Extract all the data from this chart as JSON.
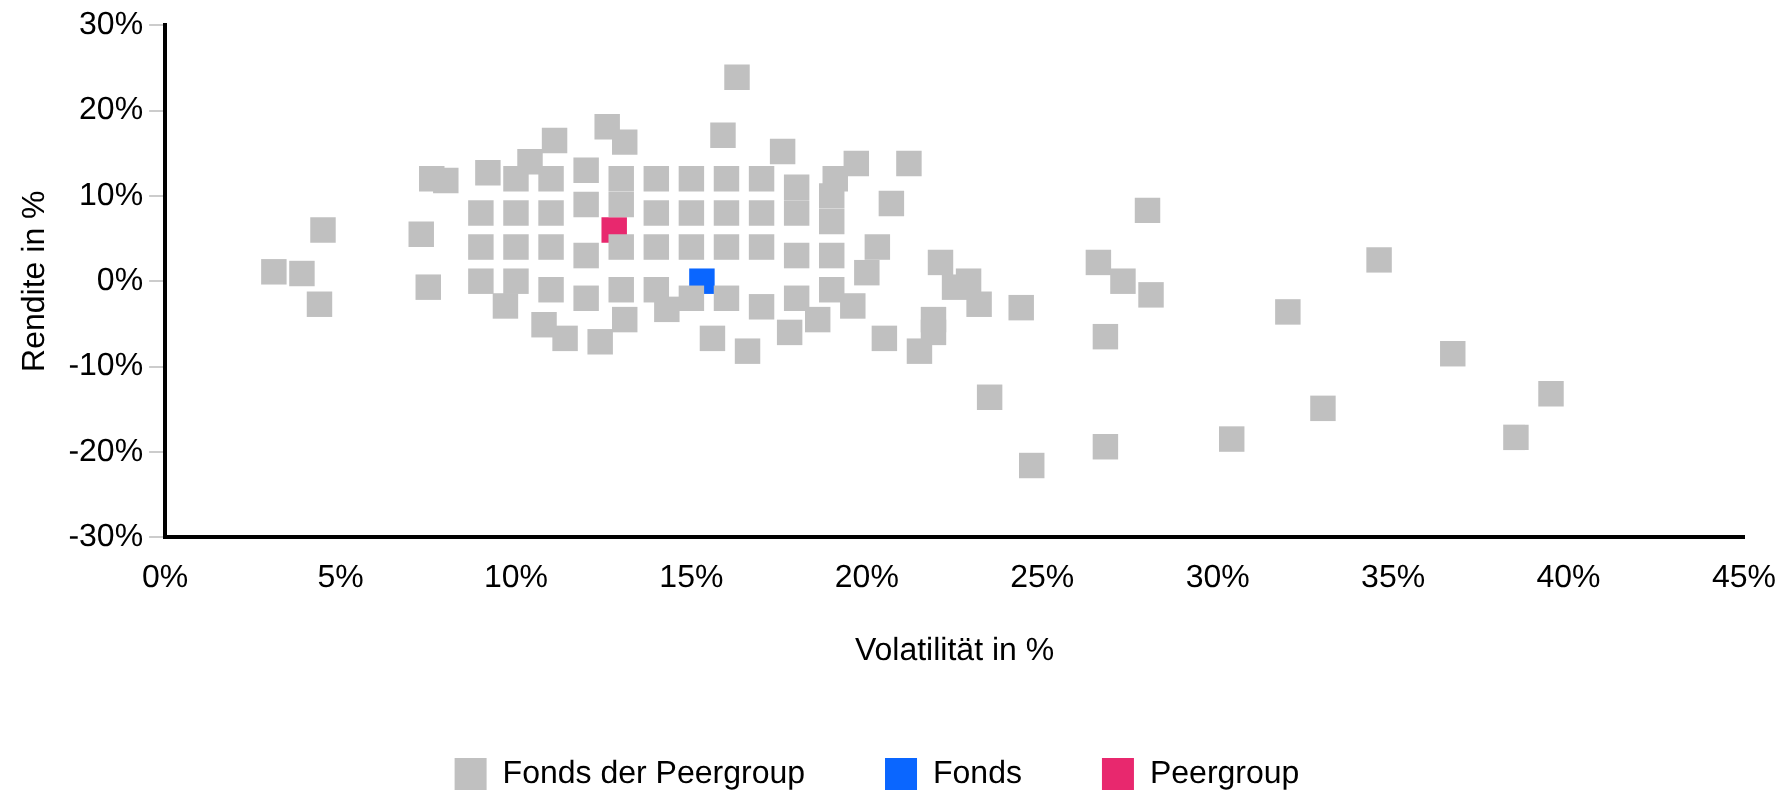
{
  "chart_data": {
    "type": "scatter",
    "xlabel": "Volatilität in %",
    "ylabel": "Rendite in %",
    "xlim": [
      0,
      45
    ],
    "ylim": [
      -30,
      30
    ],
    "xticks": [
      {
        "value": 0,
        "label": "0%"
      },
      {
        "value": 5,
        "label": "5%"
      },
      {
        "value": 10,
        "label": "10%"
      },
      {
        "value": 15,
        "label": "15%"
      },
      {
        "value": 20,
        "label": "20%"
      },
      {
        "value": 25,
        "label": "25%"
      },
      {
        "value": 30,
        "label": "30%"
      },
      {
        "value": 35,
        "label": "35%"
      },
      {
        "value": 40,
        "label": "40%"
      },
      {
        "value": 45,
        "label": "45%"
      }
    ],
    "yticks": [
      {
        "value": -30,
        "label": "-30%"
      },
      {
        "value": -20,
        "label": "-20%"
      },
      {
        "value": -10,
        "label": "-10%"
      },
      {
        "value": 0,
        "label": "0%"
      },
      {
        "value": 10,
        "label": "10%"
      },
      {
        "value": 20,
        "label": "20%"
      },
      {
        "value": 30,
        "label": "30%"
      }
    ],
    "grid": false,
    "legend": "bottom",
    "marker": "square",
    "series": [
      {
        "name": "Fonds der Peergroup",
        "color": "#c0c0c0",
        "x": [
          3.1,
          3.9,
          4.4,
          4.5,
          7.6,
          16.3,
          12.6,
          19.1,
          21.2,
          20.7,
          28.0,
          26.6,
          27.3,
          28.1,
          24.4,
          23.5,
          24.7,
          26.8,
          26.8,
          30.4,
          32.0,
          33.0,
          34.6,
          36.7,
          38.5,
          39.5,
          8.0,
          9.2,
          10.4,
          11.1,
          13.1,
          15.9,
          17.6,
          19.7,
          7.5,
          9.7,
          10.8,
          11.4,
          12.4,
          13.1,
          14.3,
          15.6,
          16.6,
          17.8,
          18.6,
          19.6,
          20.3,
          22.1,
          22.9,
          23.2,
          21.9,
          21.5,
          20.5,
          21.9,
          22.5,
          7.3,
          9,
          10,
          11,
          12,
          13,
          14,
          15,
          16,
          17,
          18,
          19,
          9,
          10,
          11,
          12,
          13,
          14,
          15,
          16,
          17,
          18,
          19,
          9,
          10,
          11,
          12,
          13,
          14,
          15,
          16,
          17,
          18,
          19,
          10,
          11,
          12,
          13,
          14,
          15,
          16,
          17,
          18,
          19,
          20
        ],
        "values": [
          1.1,
          0.9,
          -2.7,
          6.0,
          12.0,
          23.9,
          18.1,
          12,
          13.8,
          9.1,
          8.3,
          2.2,
          0,
          -1.6,
          -3.1,
          -13.6,
          -21.6,
          -19.4,
          -6.5,
          -18.5,
          -3.6,
          -14.9,
          2.5,
          -8.5,
          -18.3,
          -13.2,
          11.8,
          12.7,
          14,
          16.5,
          16.3,
          17.1,
          15.2,
          13.8,
          -0.7,
          -2.9,
          -5.1,
          -6.7,
          -7.1,
          -4.5,
          -3.3,
          -6.7,
          -8.2,
          -6,
          -4.5,
          -2.9,
          4,
          2.2,
          0,
          -2.7,
          -4.5,
          -8.2,
          -6.7,
          -6,
          -0.7,
          5.5,
          0,
          0,
          -1,
          -2,
          -1,
          -1,
          -2,
          -2,
          -3,
          -2,
          -1,
          4,
          4,
          4,
          3,
          4,
          4,
          4,
          4,
          4,
          3,
          3,
          8,
          8,
          8,
          9,
          9,
          8,
          8,
          8,
          8,
          8,
          7,
          12,
          12,
          13,
          12,
          12,
          12,
          12,
          12,
          11,
          10,
          1
        ]
      },
      {
        "name": "Fonds",
        "color": "#0a66ff",
        "x": [
          15.3
        ],
        "values": [
          0
        ]
      },
      {
        "name": "Peergroup",
        "color": "#e8286e",
        "x": [
          12.8
        ],
        "values": [
          6.0
        ]
      }
    ]
  }
}
